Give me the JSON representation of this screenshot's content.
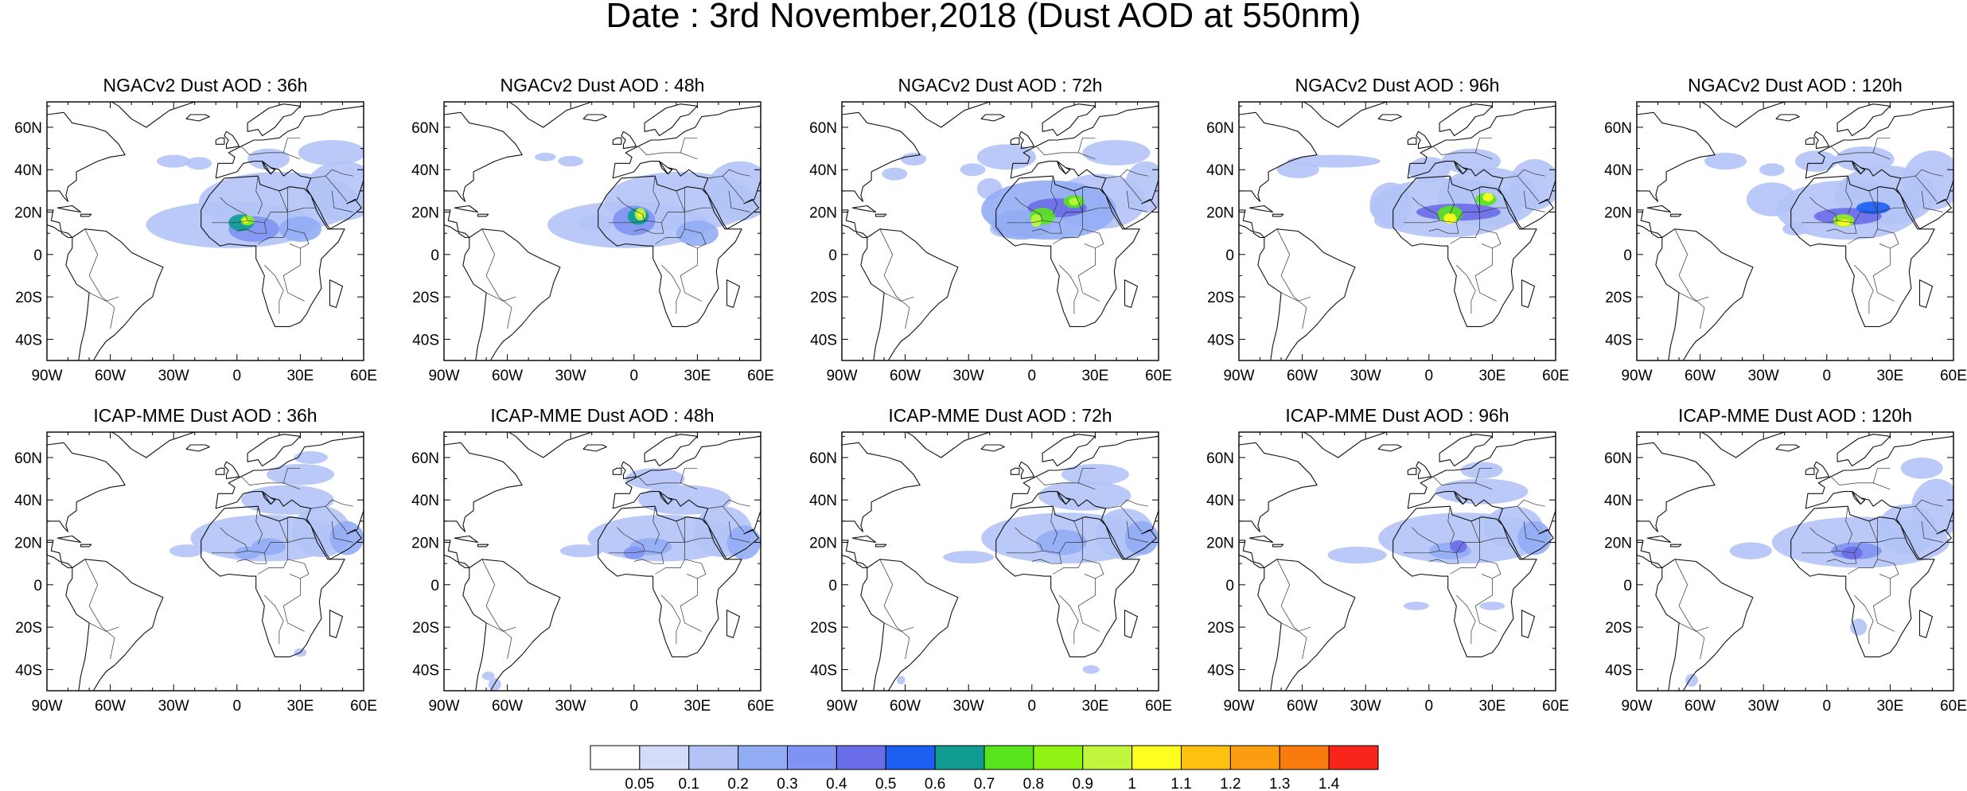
{
  "figure": {
    "title": "Date : 3rd November,2018 (Dust AOD at 550nm)"
  },
  "panels": [
    {
      "title": "NGACv2 Dust AOD : 36h",
      "model": "NGACv2",
      "lead": "36h"
    },
    {
      "title": "NGACv2 Dust AOD : 48h",
      "model": "NGACv2",
      "lead": "48h"
    },
    {
      "title": "NGACv2 Dust AOD : 72h",
      "model": "NGACv2",
      "lead": "72h"
    },
    {
      "title": "NGACv2 Dust AOD : 96h",
      "model": "NGACv2",
      "lead": "96h"
    },
    {
      "title": "NGACv2 Dust AOD : 120h",
      "model": "NGACv2",
      "lead": "120h"
    },
    {
      "title": "ICAP-MME Dust AOD : 36h",
      "model": "ICAP-MME",
      "lead": "36h"
    },
    {
      "title": "ICAP-MME Dust AOD : 48h",
      "model": "ICAP-MME",
      "lead": "48h"
    },
    {
      "title": "ICAP-MME Dust AOD : 72h",
      "model": "ICAP-MME",
      "lead": "72h"
    },
    {
      "title": "ICAP-MME Dust AOD : 96h",
      "model": "ICAP-MME",
      "lead": "96h"
    },
    {
      "title": "ICAP-MME Dust AOD : 120h",
      "model": "ICAP-MME",
      "lead": "120h"
    }
  ],
  "map": {
    "lon_range": [
      -90,
      60
    ],
    "lat_range": [
      -50,
      72
    ],
    "x_ticks": [
      {
        "value": -90,
        "label": "90W"
      },
      {
        "value": -60,
        "label": "60W"
      },
      {
        "value": -30,
        "label": "30W"
      },
      {
        "value": 0,
        "label": "0"
      },
      {
        "value": 30,
        "label": "30E"
      },
      {
        "value": 60,
        "label": "60E"
      }
    ],
    "y_ticks": [
      {
        "value": 60,
        "label": "60N"
      },
      {
        "value": 40,
        "label": "40N"
      },
      {
        "value": 20,
        "label": "20N"
      },
      {
        "value": 0,
        "label": "0"
      },
      {
        "value": -20,
        "label": "20S"
      },
      {
        "value": -40,
        "label": "40S"
      }
    ]
  },
  "colorbar": {
    "labels": [
      "0.05",
      "0.1",
      "0.2",
      "0.3",
      "0.4",
      "0.5",
      "0.6",
      "0.7",
      "0.8",
      "0.9",
      "1",
      "1.1",
      "1.2",
      "1.3",
      "1.4"
    ],
    "colors": [
      "#ffffff",
      "#d3dcf8",
      "#b3c3f6",
      "#92acf4",
      "#7f93f2",
      "#6a6de8",
      "#1c5ff1",
      "#109c92",
      "#59e41d",
      "#91f314",
      "#c0f73c",
      "#ffff1f",
      "#ffc010",
      "#fb9c11",
      "#f97b0e",
      "#f8261a"
    ]
  }
}
